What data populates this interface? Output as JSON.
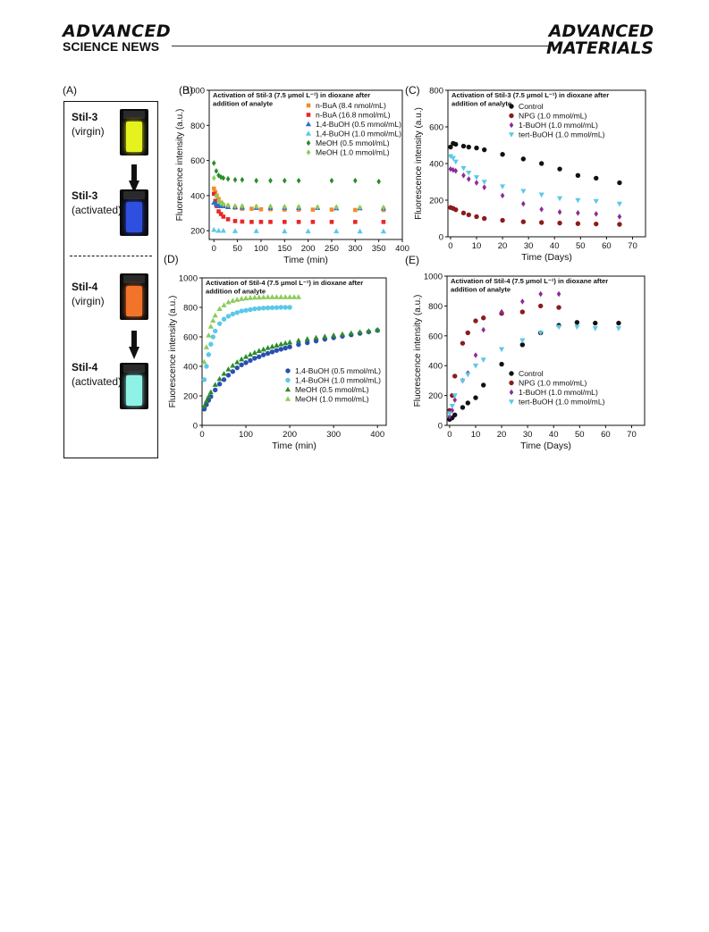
{
  "header": {
    "left_line1": "ADVANCED",
    "left_line2": "SCIENCE NEWS",
    "right_line1": "ADVANCED",
    "right_line2": "MATERIALS"
  },
  "panelA": {
    "letter": "(A)",
    "samples": [
      {
        "name": "Stil-3",
        "state": "(virgin)",
        "liquid_color": "#e6f21e"
      },
      {
        "name": "Stil-3",
        "state": "(activated)",
        "liquid_color": "#2f4fe0"
      },
      {
        "name": "Stil-4",
        "state": "(virgin)",
        "liquid_color": "#f2732a"
      },
      {
        "name": "Stil-4",
        "state": "(activated)",
        "liquid_color": "#8ff2e6"
      }
    ]
  },
  "chart_data": [
    {
      "id": "B",
      "type": "scatter",
      "letter": "(B)",
      "title_lines": [
        "Activation of Stil-3 (7.5 μmol L⁻¹) in dioxane after",
        "addition of analyte"
      ],
      "xlabel": "Time (min)",
      "ylabel": "Fluorescence intensity (a.u.)",
      "xlim": [
        -10,
        400
      ],
      "ylim": [
        150,
        1000
      ],
      "xticks": [
        0,
        50,
        100,
        150,
        200,
        250,
        300,
        350,
        400
      ],
      "yticks": [
        200,
        400,
        600,
        800,
        1000
      ],
      "legend_position": "top-right",
      "series": [
        {
          "name": "n-BuA (8.4 nmol/mL)",
          "marker": "square",
          "color": "#f28c28",
          "x": [
            0,
            3,
            6,
            10,
            15,
            20,
            30,
            45,
            60,
            80,
            100,
            120,
            150,
            180,
            210,
            250,
            300,
            360
          ],
          "y": [
            440,
            420,
            400,
            380,
            360,
            345,
            335,
            330,
            325,
            325,
            322,
            322,
            320,
            320,
            320,
            320,
            318,
            318
          ]
        },
        {
          "name": "n-BuA (16.8 nmol/mL)",
          "marker": "square",
          "color": "#e8282a",
          "x": [
            0,
            3,
            6,
            10,
            15,
            20,
            30,
            45,
            60,
            80,
            100,
            120,
            150,
            180,
            210,
            250,
            300,
            360
          ],
          "y": [
            410,
            370,
            340,
            310,
            295,
            280,
            265,
            255,
            252,
            250,
            250,
            250,
            250,
            250,
            250,
            250,
            250,
            250
          ]
        },
        {
          "name": "1,4-BuOH (0.5 mmol/mL)",
          "marker": "triangle",
          "color": "#2a6fd0",
          "x": [
            0,
            5,
            10,
            15,
            20,
            30,
            45,
            60,
            90,
            120,
            150,
            180,
            220,
            260,
            310,
            360
          ],
          "y": [
            360,
            350,
            345,
            340,
            340,
            335,
            335,
            332,
            330,
            330,
            330,
            330,
            330,
            328,
            328,
            328
          ]
        },
        {
          "name": "1,4-BuOH (1.0 mmol/mL)",
          "marker": "triangle",
          "color": "#5bc8e8",
          "x": [
            0,
            10,
            20,
            45,
            90,
            150,
            200,
            260,
            310,
            360
          ],
          "y": [
            205,
            200,
            200,
            198,
            198,
            197,
            197,
            197,
            196,
            196
          ]
        },
        {
          "name": "MeOH (0.5 mmol/mL)",
          "marker": "diamond",
          "color": "#2a8c2a",
          "x": [
            0,
            5,
            10,
            15,
            20,
            30,
            45,
            60,
            90,
            120,
            150,
            180,
            250,
            300,
            350
          ],
          "y": [
            585,
            540,
            515,
            505,
            500,
            495,
            490,
            490,
            485,
            485,
            485,
            485,
            485,
            485,
            480
          ]
        },
        {
          "name": "MeOH (1.0 mmol/mL)",
          "marker": "diamond",
          "color": "#8ccc5a",
          "x": [
            0,
            5,
            10,
            15,
            20,
            30,
            45,
            60,
            90,
            120,
            150,
            180,
            220,
            260,
            310,
            360
          ],
          "y": [
            500,
            400,
            370,
            355,
            350,
            345,
            340,
            340,
            338,
            338,
            336,
            336,
            334,
            334,
            332,
            332
          ]
        }
      ]
    },
    {
      "id": "C",
      "type": "scatter",
      "letter": "(C)",
      "title_lines": [
        "Activation of Stil-3 (7.5 μmol L⁻¹) in dioxane after",
        "addition of analyte"
      ],
      "xlabel": "Time (Days)",
      "ylabel": "Fluorescence intensity (a.u.)",
      "xlim": [
        -1,
        75
      ],
      "ylim": [
        0,
        800
      ],
      "xticks": [
        0,
        10,
        20,
        30,
        40,
        50,
        60,
        70
      ],
      "yticks": [
        0,
        200,
        400,
        600,
        800
      ],
      "legend_position": "top-right",
      "series": [
        {
          "name": "Control",
          "marker": "circle",
          "color": "#111111",
          "x": [
            0,
            1,
            2,
            5,
            7,
            10,
            13,
            20,
            28,
            35,
            42,
            49,
            56,
            65
          ],
          "y": [
            490,
            510,
            505,
            495,
            490,
            485,
            475,
            450,
            425,
            400,
            370,
            335,
            320,
            295
          ]
        },
        {
          "name": "NPG (1.0 mmol/mL)",
          "marker": "circle",
          "color": "#8b1c1c",
          "x": [
            0,
            1,
            2,
            5,
            7,
            10,
            13,
            20,
            28,
            35,
            42,
            49,
            56,
            65
          ],
          "y": [
            160,
            155,
            148,
            130,
            120,
            110,
            100,
            90,
            82,
            78,
            75,
            72,
            70,
            68
          ]
        },
        {
          "name": "1-BuOH (1.0 mmol/mL)",
          "marker": "diamond",
          "color": "#8a2c9a",
          "x": [
            0,
            1,
            2,
            5,
            7,
            10,
            13,
            20,
            28,
            35,
            42,
            49,
            56,
            65
          ],
          "y": [
            370,
            365,
            360,
            335,
            315,
            295,
            270,
            225,
            180,
            150,
            135,
            130,
            125,
            110
          ]
        },
        {
          "name": "tert-BuOH (1.0 mmol/mL)",
          "marker": "triangle-down",
          "color": "#5bc8e8",
          "x": [
            0,
            1,
            2,
            5,
            7,
            10,
            13,
            20,
            28,
            35,
            42,
            49,
            56,
            65
          ],
          "y": [
            440,
            430,
            410,
            375,
            350,
            325,
            300,
            275,
            250,
            230,
            210,
            200,
            195,
            180
          ]
        }
      ]
    },
    {
      "id": "D",
      "type": "scatter",
      "letter": "(D)",
      "title_lines": [
        "Activation of Stil-4 (7.5 μmol L⁻¹) in dioxane after",
        "addition of analyte"
      ],
      "xlabel": "Time (min)",
      "ylabel": "Fluorescence intensity (a.u.)",
      "xlim": [
        0,
        420
      ],
      "ylim": [
        0,
        1000
      ],
      "xticks": [
        0,
        100,
        200,
        300,
        400
      ],
      "yticks": [
        0,
        200,
        400,
        600,
        800,
        1000
      ],
      "legend_position": "bottom-right",
      "series": [
        {
          "name": "1,4-BuOH (0.5 mmol/mL)",
          "marker": "circle",
          "color": "#2a4fb0",
          "x": [
            5,
            10,
            15,
            20,
            30,
            40,
            50,
            60,
            70,
            80,
            90,
            100,
            110,
            120,
            130,
            140,
            150,
            160,
            170,
            180,
            190,
            200,
            220,
            240,
            260,
            280,
            300,
            320,
            340,
            360,
            380,
            400
          ],
          "y": [
            110,
            140,
            170,
            195,
            240,
            280,
            310,
            340,
            365,
            390,
            410,
            425,
            440,
            455,
            465,
            478,
            488,
            498,
            508,
            516,
            524,
            532,
            548,
            560,
            572,
            584,
            594,
            604,
            614,
            624,
            634,
            644
          ]
        },
        {
          "name": "1,4-BuOH (1.0 mmol/mL)",
          "marker": "circle",
          "color": "#5bc8e8",
          "x": [
            5,
            10,
            15,
            20,
            25,
            30,
            40,
            50,
            60,
            70,
            80,
            90,
            100,
            110,
            120,
            130,
            140,
            150,
            160,
            170,
            180,
            190,
            200
          ],
          "y": [
            310,
            400,
            480,
            550,
            600,
            640,
            690,
            720,
            740,
            755,
            765,
            775,
            780,
            785,
            790,
            793,
            795,
            797,
            798,
            799,
            800,
            800,
            800
          ]
        },
        {
          "name": "MeOH (0.5 mmol/mL)",
          "marker": "triangle",
          "color": "#2a8c2a",
          "x": [
            5,
            10,
            15,
            20,
            30,
            40,
            50,
            60,
            70,
            80,
            90,
            100,
            110,
            120,
            130,
            140,
            150,
            160,
            170,
            180,
            190,
            200,
            220,
            240,
            260,
            280,
            300,
            320,
            340,
            360,
            380,
            400
          ],
          "y": [
            130,
            165,
            195,
            225,
            275,
            315,
            350,
            380,
            405,
            428,
            448,
            465,
            480,
            493,
            505,
            515,
            525,
            534,
            542,
            550,
            557,
            563,
            575,
            585,
            594,
            602,
            610,
            618,
            625,
            632,
            640,
            648
          ]
        },
        {
          "name": "MeOH (1.0 mmol/mL)",
          "marker": "triangle",
          "color": "#8ccc5a",
          "x": [
            5,
            10,
            15,
            20,
            25,
            30,
            40,
            50,
            60,
            70,
            80,
            90,
            100,
            110,
            120,
            130,
            140,
            150,
            160,
            170,
            180,
            190,
            200,
            210,
            220
          ],
          "y": [
            430,
            530,
            610,
            670,
            710,
            745,
            790,
            815,
            835,
            845,
            852,
            858,
            862,
            865,
            867,
            868,
            869,
            870,
            870,
            870,
            870,
            870,
            870,
            870,
            870
          ]
        }
      ]
    },
    {
      "id": "E",
      "type": "scatter",
      "letter": "(E)",
      "title_lines": [
        "Activation of Stil-4 (7.5 μmol L⁻¹) in dioxane after",
        "addition of analyte"
      ],
      "xlabel": "Time (Days)",
      "ylabel": "Fluorescence intensity (a.u.)",
      "xlim": [
        -1,
        75
      ],
      "ylim": [
        0,
        1000
      ],
      "xticks": [
        0,
        10,
        20,
        30,
        40,
        50,
        60,
        70
      ],
      "yticks": [
        0,
        200,
        400,
        600,
        800,
        1000
      ],
      "legend_position": "bottom-right",
      "series": [
        {
          "name": "Control",
          "marker": "circle",
          "color": "#111111",
          "x": [
            0,
            1,
            2,
            5,
            7,
            10,
            13,
            20,
            28,
            35,
            42,
            49,
            56,
            65
          ],
          "y": [
            40,
            50,
            70,
            120,
            150,
            185,
            270,
            410,
            540,
            620,
            670,
            690,
            685,
            685
          ]
        },
        {
          "name": "NPG (1.0 mmol/mL)",
          "marker": "circle",
          "color": "#8b1c1c",
          "x": [
            0,
            1,
            2,
            5,
            7,
            10,
            13,
            20,
            28,
            35,
            42
          ],
          "y": [
            100,
            200,
            330,
            550,
            620,
            700,
            720,
            750,
            760,
            800,
            790
          ]
        },
        {
          "name": "1-BuOH (1.0 mmol/mL)",
          "marker": "diamond",
          "color": "#8a2c9a",
          "x": [
            0,
            1,
            2,
            5,
            7,
            10,
            13,
            20,
            28,
            35,
            42
          ],
          "y": [
            60,
            100,
            170,
            300,
            350,
            470,
            640,
            760,
            830,
            880,
            880
          ]
        },
        {
          "name": "tert-BuOH (1.0 mmol/mL)",
          "marker": "triangle-down",
          "color": "#5bc8e8",
          "x": [
            0,
            1,
            2,
            5,
            7,
            10,
            13,
            20,
            28,
            35,
            42,
            49,
            56,
            65
          ],
          "y": [
            80,
            130,
            200,
            300,
            340,
            400,
            440,
            510,
            570,
            620,
            660,
            660,
            650,
            650
          ]
        }
      ]
    }
  ]
}
